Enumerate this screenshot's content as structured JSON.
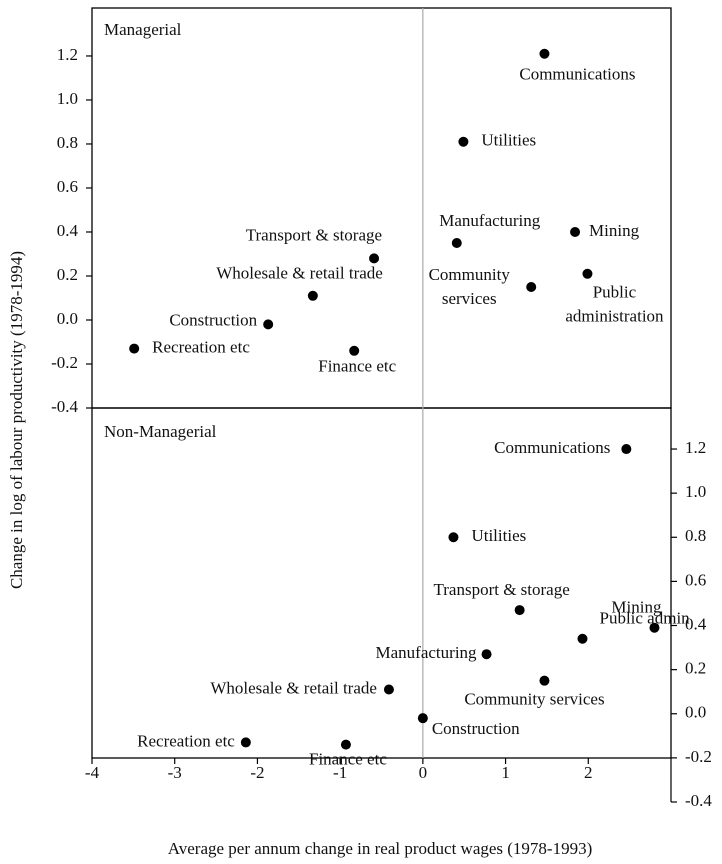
{
  "chart_data": [
    {
      "type": "scatter",
      "title": "Managerial",
      "ylabel": "Change in log of labour productivity (1978-1994)",
      "labels": [
        "Communications",
        "Utilities",
        "Manufacturing",
        "Mining",
        [
          "Community",
          "services"
        ],
        [
          "Public",
          "administration"
        ],
        "Transport & storage",
        "Wholesale & retail trade",
        "Construction",
        "Recreation etc",
        "Finance etc"
      ],
      "x": [
        1.47,
        0.49,
        0.41,
        1.84,
        1.31,
        1.99,
        -0.59,
        -1.33,
        -1.87,
        -3.49,
        -0.83
      ],
      "values": [
        1.21,
        0.81,
        0.35,
        0.4,
        0.15,
        0.21,
        0.28,
        0.11,
        -0.02,
        -0.13,
        -0.14
      ],
      "color": "#000000",
      "xlim": [
        -4,
        3
      ],
      "ylim": [
        -0.4,
        1.418
      ],
      "yticks": [
        1.2,
        {
          "value": 1,
          "label": "1.0"
        },
        0.8,
        0.6,
        0.4,
        0.2,
        {
          "value": 0,
          "label": "0.0"
        },
        -0.2,
        -0.4
      ]
    },
    {
      "type": "scatter",
      "title": "Non-Managerial",
      "xlabel": "Average per annum change in real product wages (1978-1993)",
      "labels": [
        "Communications",
        "Utilities",
        "Mining",
        "Transport & storage",
        "Public admin",
        "Manufacturing",
        "Community services",
        "Wholesale & retail trade",
        "Construction",
        "Recreation etc",
        "Finance etc"
      ],
      "x": [
        2.46,
        0.37,
        2.8,
        1.17,
        1.93,
        0.77,
        1.47,
        -0.41,
        0.0,
        -2.14,
        -0.93
      ],
      "values": [
        1.2,
        0.8,
        0.39,
        0.47,
        0.34,
        0.27,
        0.15,
        0.11,
        -0.02,
        -0.13,
        -0.14
      ],
      "color": "#000000",
      "xlim": [
        -4,
        3
      ],
      "ylim": [
        -0.4,
        1.386
      ],
      "xticks": [
        -4,
        -3,
        -2,
        -1,
        0,
        1,
        2
      ],
      "yticks": [
        1.2,
        {
          "value": 1,
          "label": "1.0"
        },
        0.8,
        0.6,
        0.4,
        0.2,
        {
          "value": 0,
          "label": "0.0"
        },
        -0.2,
        -0.4
      ]
    }
  ]
}
